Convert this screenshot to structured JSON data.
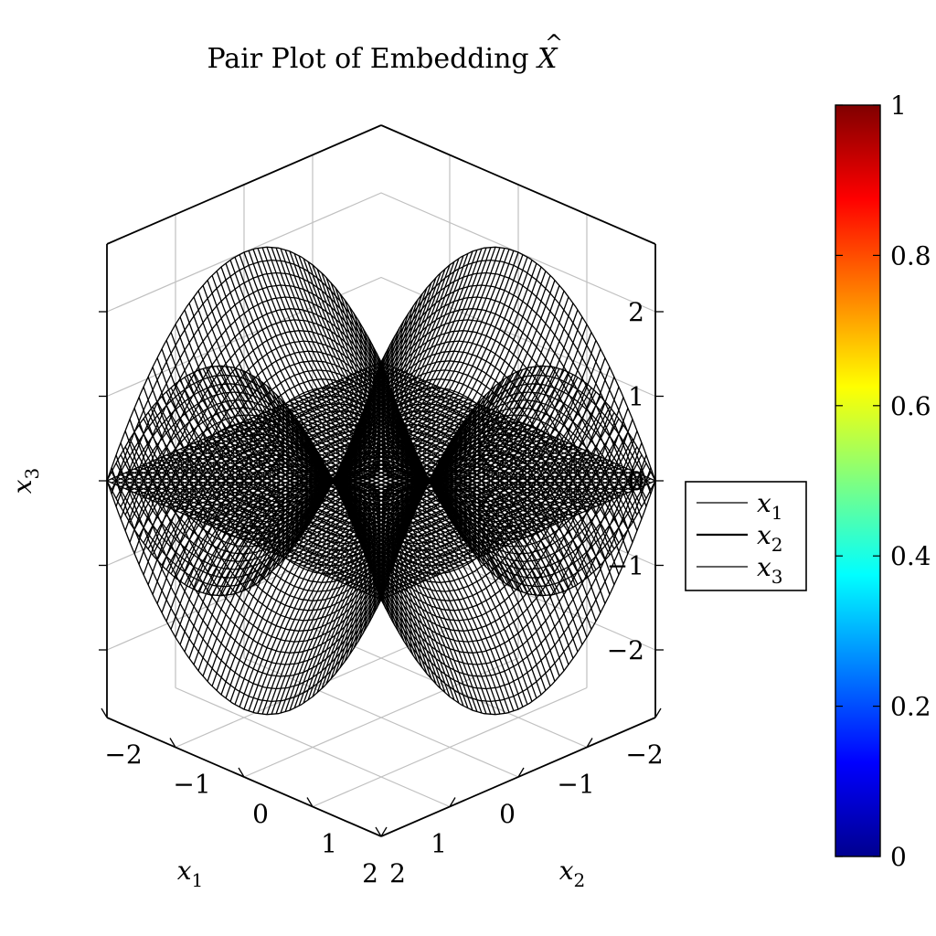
{
  "chart_data": {
    "type": "surface3d",
    "title": "Pair Plot of Embedding X̂",
    "xlabel": "x1",
    "ylabel": "x2",
    "zlabel": "x3",
    "xlim": [
      -2,
      2
    ],
    "ylim": [
      -2,
      2
    ],
    "zlim": [
      -2.8,
      2.8
    ],
    "x_ticks": [
      "−2",
      "−1",
      "0",
      "1",
      "2"
    ],
    "y_ticks": [
      "−2",
      "−1",
      "0",
      "1",
      "2"
    ],
    "z_ticks": [
      "−2",
      "−1",
      "0",
      "1",
      "2"
    ],
    "grid": true,
    "legend": {
      "position": "right",
      "entries": [
        "x1",
        "x2",
        "x3"
      ]
    },
    "surfaces": [
      {
        "name": "x1",
        "formula": "z = (x1^2 - x2^2) / 2",
        "color": "#000000"
      },
      {
        "name": "x2",
        "formula": "z = 0",
        "color": "#000000"
      },
      {
        "name": "x3",
        "formula": "z = (x2^2 - x1^2) / 2",
        "color": "#000000"
      }
    ],
    "colorbar": {
      "min": 0,
      "max": 1,
      "ticks": [
        "0",
        "0.2",
        "0.4",
        "0.6",
        "0.8",
        "1"
      ],
      "colormap": "jet"
    }
  }
}
